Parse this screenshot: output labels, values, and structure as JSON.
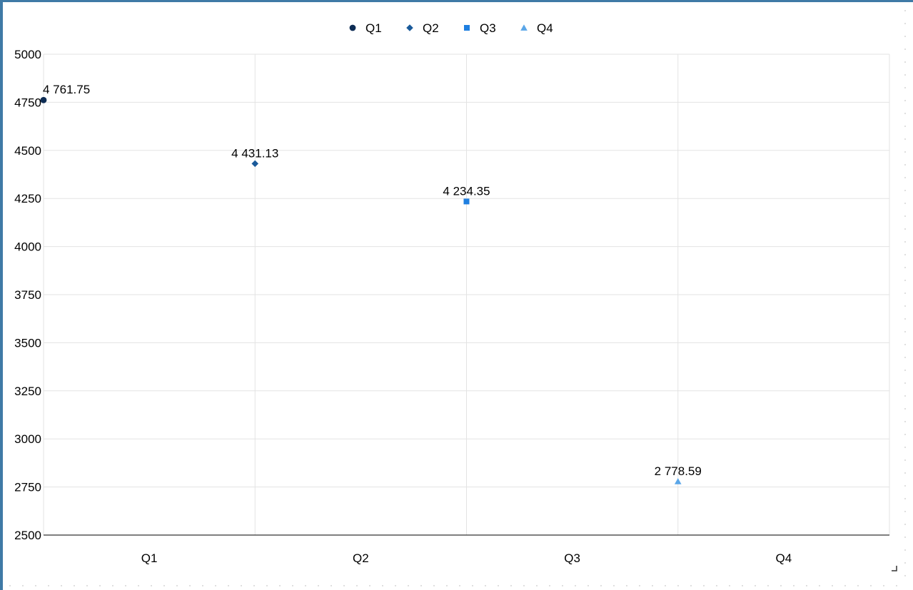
{
  "chart_data": {
    "type": "scatter",
    "title": "",
    "xlabel": "",
    "ylabel": "",
    "categories": [
      "Q1",
      "Q2",
      "Q3",
      "Q4"
    ],
    "ylim": [
      2500,
      5000
    ],
    "y_ticks": [
      "2500",
      "2750",
      "3000",
      "3250",
      "3500",
      "3750",
      "4000",
      "4250",
      "4500",
      "4750",
      "5000"
    ],
    "grid": true,
    "legend": "top-center",
    "series": [
      {
        "name": "Q1",
        "marker": "circle",
        "color": "#0d2c54",
        "x": 0,
        "value": 4761.75,
        "label": "4 761.75"
      },
      {
        "name": "Q2",
        "marker": "diamond",
        "color": "#1a5a9a",
        "x": 1,
        "value": 4431.13,
        "label": "4 431.13"
      },
      {
        "name": "Q3",
        "marker": "square",
        "color": "#1f7fe0",
        "x": 2,
        "value": 4234.35,
        "label": "4 234.35"
      },
      {
        "name": "Q4",
        "marker": "triangle",
        "color": "#5aa6e8",
        "x": 3,
        "value": 2778.59,
        "label": "2 778.59"
      }
    ]
  }
}
